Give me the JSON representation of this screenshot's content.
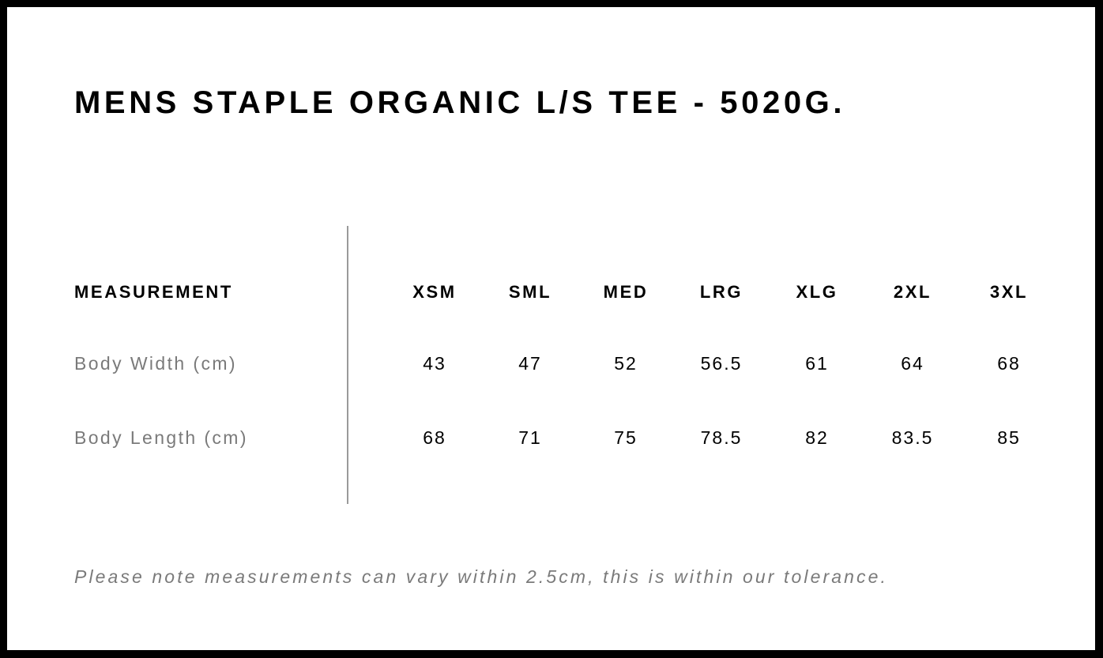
{
  "title": "MENS STAPLE ORGANIC L/S TEE - 5020G.",
  "table": {
    "header_label": "MEASUREMENT",
    "sizes": [
      "XSM",
      "SML",
      "MED",
      "LRG",
      "XLG",
      "2XL",
      "3XL"
    ],
    "rows": [
      {
        "label": "Body Width (cm)",
        "values": [
          "43",
          "47",
          "52",
          "56.5",
          "61",
          "64",
          "68"
        ]
      },
      {
        "label": "Body Length (cm)",
        "values": [
          "68",
          "71",
          "75",
          "78.5",
          "82",
          "83.5",
          "85"
        ]
      }
    ]
  },
  "note": "Please note measurements can vary within 2.5cm, this is within our tolerance."
}
